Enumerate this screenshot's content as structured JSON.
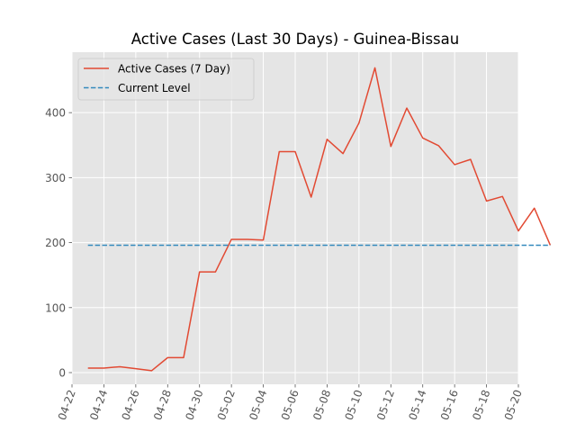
{
  "chart_data": {
    "type": "line",
    "title": "Active Cases (Last 30 Days) - Guinea-Bissau",
    "xlabel": "",
    "ylabel": "",
    "x_type": "date",
    "x_year": 2020,
    "x": [
      "04-23",
      "04-24",
      "04-25",
      "04-26",
      "04-27",
      "04-28",
      "04-29",
      "04-30",
      "05-01",
      "05-02",
      "05-03",
      "05-04",
      "05-05",
      "05-06",
      "05-07",
      "05-08",
      "05-09",
      "05-10",
      "05-11",
      "05-12",
      "05-13",
      "05-14",
      "05-15",
      "05-16",
      "05-17",
      "05-18",
      "05-19",
      "05-20",
      "05-21",
      "05-22"
    ],
    "xlim": [
      "04-22",
      "05-20"
    ],
    "ylim": [
      -18,
      493
    ],
    "x_ticks": [
      "04-22",
      "04-24",
      "04-26",
      "04-28",
      "04-30",
      "05-02",
      "05-04",
      "05-06",
      "05-08",
      "05-10",
      "05-12",
      "05-14",
      "05-16",
      "05-18",
      "05-20"
    ],
    "y_ticks": [
      0,
      100,
      200,
      300,
      400
    ],
    "grid": true,
    "legend_position": "top-left",
    "series": [
      {
        "name": "Active Cases (7 Day)",
        "color": "#E24A33",
        "style": "solid",
        "values": [
          7,
          7,
          9,
          6,
          3,
          23,
          23,
          155,
          155,
          205,
          205,
          204,
          340,
          340,
          270,
          359,
          337,
          384,
          469,
          348,
          407,
          361,
          349,
          320,
          328,
          264,
          271,
          218,
          253,
          196
        ]
      },
      {
        "name": "Current Level",
        "color": "#348ABD",
        "style": "dashed",
        "values": [
          196,
          196,
          196,
          196,
          196,
          196,
          196,
          196,
          196,
          196,
          196,
          196,
          196,
          196,
          196,
          196,
          196,
          196,
          196,
          196,
          196,
          196,
          196,
          196,
          196,
          196,
          196,
          196,
          196,
          196
        ]
      }
    ]
  }
}
